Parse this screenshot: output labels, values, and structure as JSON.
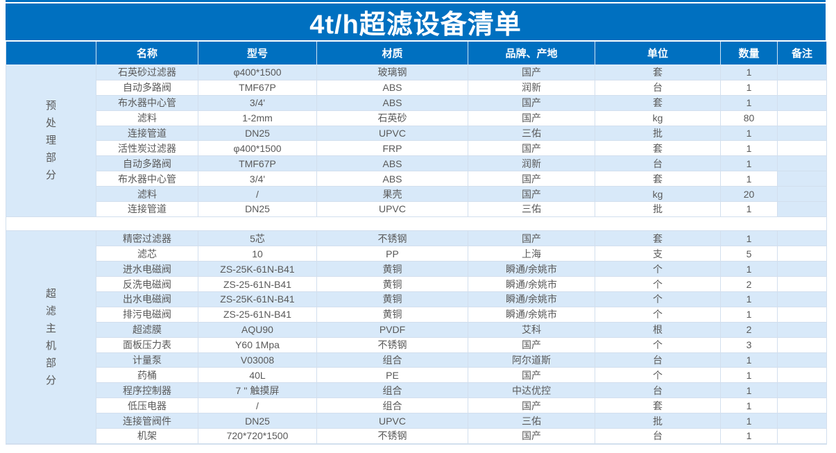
{
  "title": "4t/h超滤设备清单",
  "colors": {
    "header_blue": "#0070c0",
    "row_light_blue": "#d8e9f9",
    "grid_line": "#d2dfee",
    "cell_text": "#595959",
    "title_text": "#ffffff"
  },
  "columns": [
    "名称",
    "型号",
    "材质",
    "品牌、产地",
    "单位",
    "数量",
    "备注"
  ],
  "sections": [
    {
      "label": "预处理部分",
      "rows": [
        {
          "name": "石英砂过滤器",
          "model": "φ400*1500",
          "material": "玻璃钢",
          "brand": "国产",
          "unit": "套",
          "qty": "1",
          "remark": "",
          "shaded": true,
          "remark_shaded": true
        },
        {
          "name": "自动多路阀",
          "model": "TMF67P",
          "material": "ABS",
          "brand": "润新",
          "unit": "台",
          "qty": "1",
          "remark": "",
          "shaded": false,
          "remark_shaded": false
        },
        {
          "name": "布水器中心管",
          "model": "3/4'",
          "material": "ABS",
          "brand": "国产",
          "unit": "套",
          "qty": "1",
          "remark": "",
          "shaded": true,
          "remark_shaded": true
        },
        {
          "name": "滤料",
          "model": "1-2mm",
          "material": "石英砂",
          "brand": "国产",
          "unit": "kg",
          "qty": "80",
          "remark": "",
          "shaded": false,
          "remark_shaded": false
        },
        {
          "name": "连接管道",
          "model": "DN25",
          "material": "UPVC",
          "brand": "三佑",
          "unit": "批",
          "qty": "1",
          "remark": "",
          "shaded": true,
          "remark_shaded": true
        },
        {
          "name": "活性炭过滤器",
          "model": "φ400*1500",
          "material": "FRP",
          "brand": "国产",
          "unit": "套",
          "qty": "1",
          "remark": "",
          "shaded": false,
          "remark_shaded": false
        },
        {
          "name": "自动多路阀",
          "model": "TMF67P",
          "material": "ABS",
          "brand": "润新",
          "unit": "台",
          "qty": "1",
          "remark": "",
          "shaded": true,
          "remark_shaded": true
        },
        {
          "name": "布水器中心管",
          "model": "3/4'",
          "material": "ABS",
          "brand": "国产",
          "unit": "套",
          "qty": "1",
          "remark": "",
          "shaded": false,
          "remark_shaded": true
        },
        {
          "name": "滤料",
          "model": "/",
          "material": "果壳",
          "brand": "国产",
          "unit": "kg",
          "qty": "20",
          "remark": "",
          "shaded": true,
          "remark_shaded": true
        },
        {
          "name": "连接管道",
          "model": "DN25",
          "material": "UPVC",
          "brand": "三佑",
          "unit": "批",
          "qty": "1",
          "remark": "",
          "shaded": false,
          "remark_shaded": true
        }
      ]
    },
    {
      "label": "超滤主机部分",
      "rows": [
        {
          "name": "精密过滤器",
          "model": "5芯",
          "material": "不锈钢",
          "brand": "国产",
          "unit": "套",
          "qty": "1",
          "remark": "",
          "shaded": true,
          "remark_shaded": true
        },
        {
          "name": "滤芯",
          "model": "10",
          "material": "PP",
          "brand": "上海",
          "unit": "支",
          "qty": "5",
          "remark": "",
          "shaded": false,
          "remark_shaded": false
        },
        {
          "name": "进水电磁阀",
          "model": "ZS-25K-61N-B41",
          "material": "黄铜",
          "brand": "瞬通/余姚市",
          "unit": "个",
          "qty": "1",
          "remark": "",
          "shaded": true,
          "remark_shaded": true
        },
        {
          "name": "反洗电磁阀",
          "model": "ZS-25-61N-B41",
          "material": "黄铜",
          "brand": "瞬通/余姚市",
          "unit": "个",
          "qty": "2",
          "remark": "",
          "shaded": false,
          "remark_shaded": false
        },
        {
          "name": "出水电磁阀",
          "model": "ZS-25K-61N-B41",
          "material": "黄铜",
          "brand": "瞬通/余姚市",
          "unit": "个",
          "qty": "1",
          "remark": "",
          "shaded": true,
          "remark_shaded": true
        },
        {
          "name": "排污电磁阀",
          "model": "ZS-25-61N-B41",
          "material": "黄铜",
          "brand": "瞬通/余姚市",
          "unit": "个",
          "qty": "1",
          "remark": "",
          "shaded": false,
          "remark_shaded": false
        },
        {
          "name": "超滤膜",
          "model": "AQU90",
          "material": "PVDF",
          "brand": "艾科",
          "unit": "根",
          "qty": "2",
          "remark": "",
          "shaded": true,
          "remark_shaded": true
        },
        {
          "name": "面板压力表",
          "model": "Y60 1Mpa",
          "material": "不锈钢",
          "brand": "国产",
          "unit": "个",
          "qty": "3",
          "remark": "",
          "shaded": false,
          "remark_shaded": false
        },
        {
          "name": "计量泵",
          "model": "V03008",
          "material": "组合",
          "brand": "阿尔道斯",
          "unit": "台",
          "qty": "1",
          "remark": "",
          "shaded": true,
          "remark_shaded": true
        },
        {
          "name": "药桶",
          "model": "40L",
          "material": "PE",
          "brand": "国产",
          "unit": "个",
          "qty": "1",
          "remark": "",
          "shaded": false,
          "remark_shaded": false
        },
        {
          "name": "程序控制器",
          "model": "7 '' 触摸屏",
          "material": "组合",
          "brand": "中达优控",
          "unit": "台",
          "qty": "1",
          "remark": "",
          "shaded": true,
          "remark_shaded": true
        },
        {
          "name": "低压电器",
          "model": "/",
          "material": "组合",
          "brand": "国产",
          "unit": "套",
          "qty": "1",
          "remark": "",
          "shaded": false,
          "remark_shaded": false
        },
        {
          "name": "连接管阀件",
          "model": "DN25",
          "material": "UPVC",
          "brand": "三佑",
          "unit": "批",
          "qty": "1",
          "remark": "",
          "shaded": true,
          "remark_shaded": true
        },
        {
          "name": "机架",
          "model": "720*720*1500",
          "material": "不锈钢",
          "brand": "国产",
          "unit": "台",
          "qty": "1",
          "remark": "",
          "shaded": false,
          "remark_shaded": false
        }
      ]
    }
  ]
}
